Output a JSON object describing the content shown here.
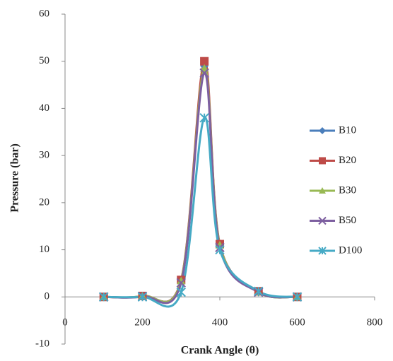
{
  "chart_data": {
    "type": "line",
    "x_label": "Crank Angle (θ)",
    "y_label": "Pressure (bar)",
    "x": [
      100,
      200,
      300,
      360,
      400,
      500,
      600
    ],
    "series": [
      {
        "name": "B10",
        "color": "#4a7ebb",
        "marker": "diamond",
        "values": [
          0,
          0.2,
          3.5,
          49,
          11,
          1,
          0
        ]
      },
      {
        "name": "B20",
        "color": "#be4b48",
        "marker": "square",
        "values": [
          0,
          0.2,
          3.6,
          50,
          11.2,
          1.2,
          0
        ]
      },
      {
        "name": "B30",
        "color": "#98b954",
        "marker": "triangle",
        "values": [
          0,
          0.2,
          3.4,
          48.5,
          11,
          1,
          0
        ]
      },
      {
        "name": "B50",
        "color": "#7d5fa0",
        "marker": "x",
        "values": [
          0,
          0.1,
          3,
          47.5,
          10.5,
          1,
          0
        ]
      },
      {
        "name": "D100",
        "color": "#46aac5",
        "marker": "star",
        "values": [
          0,
          0,
          1,
          38,
          10,
          1.2,
          0
        ]
      }
    ],
    "xlim": [
      0,
      800
    ],
    "xticks": [
      0,
      200,
      400,
      600,
      800
    ],
    "ylim": [
      -10,
      60
    ],
    "yticks": [
      -10,
      0,
      10,
      20,
      30,
      40,
      50,
      60
    ],
    "grid": false,
    "legend": "right"
  }
}
